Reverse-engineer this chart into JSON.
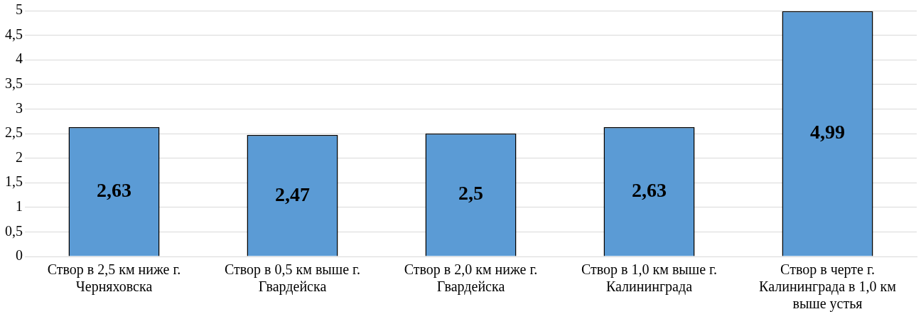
{
  "chart_data": {
    "type": "bar",
    "categories": [
      "Створ в 2,5 км ниже г. Черняховска",
      "Створ в 0,5 км выше г. Гвардейска",
      "Створ в 2,0 км ниже г. Гвардейска",
      "Створ в 1,0 км выше г. Калининграда",
      "Створ в черте г. Калининграда в 1,0 км выше устья"
    ],
    "values": [
      2.63,
      2.47,
      2.5,
      2.63,
      4.99
    ],
    "value_labels": [
      "2,63",
      "2,47",
      "2,5",
      "2,63",
      "4,99"
    ],
    "color": "#5b9bd5",
    "ylim": [
      0,
      5
    ],
    "yticks": [
      0,
      {
        "value": 0.5,
        "label": "0,5"
      },
      1,
      {
        "value": 1.5,
        "label": "1,5"
      },
      2,
      {
        "value": 2.5,
        "label": "2,5"
      },
      3,
      {
        "value": 3.5,
        "label": "3,5"
      },
      4,
      {
        "value": 4.5,
        "label": "4,5"
      },
      5
    ],
    "grid": "y",
    "legend": false
  }
}
